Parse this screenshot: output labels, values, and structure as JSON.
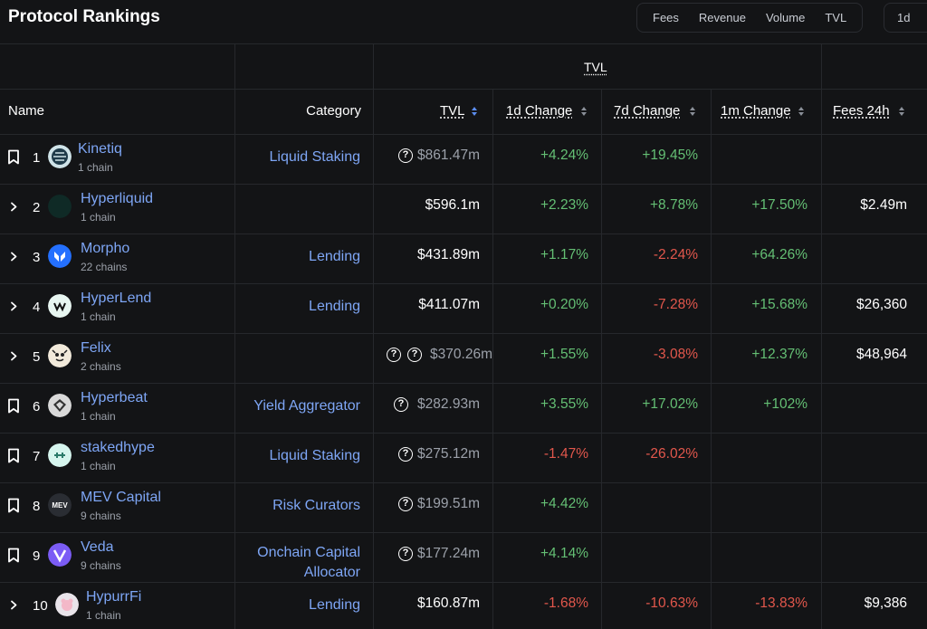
{
  "header": {
    "title": "Protocol Rankings",
    "filters": [
      "Fees",
      "Revenue",
      "Volume",
      "TVL"
    ],
    "period": "1d"
  },
  "table": {
    "group_label": "TVL",
    "columns": {
      "name": "Name",
      "category": "Category",
      "tvl": "TVL",
      "change_1d": "1d Change",
      "change_7d": "7d Change",
      "change_1m": "1m Change",
      "fees_24h": "Fees 24h"
    },
    "rows": [
      {
        "rank": "1",
        "name": "Kinetiq",
        "chains": "1 chain",
        "category": "Liquid Staking",
        "tvl": "$861.47m",
        "tvl_muted": true,
        "q": 1,
        "c1d": "+4.24%",
        "c7d": "+19.45%",
        "c1m": "",
        "fees": "",
        "row_icon": "bookmark-icon",
        "logo": "kinetiq-logo"
      },
      {
        "rank": "2",
        "name": "Hyperliquid",
        "chains": "1 chain",
        "category": "",
        "tvl": "$596.1m",
        "tvl_muted": false,
        "q": 0,
        "c1d": "+2.23%",
        "c7d": "+8.78%",
        "c1m": "+17.50%",
        "fees": "$2.49m",
        "row_icon": "chevron-right-icon",
        "logo": "hyperliquid-logo"
      },
      {
        "rank": "3",
        "name": "Morpho",
        "chains": "22 chains",
        "category": "Lending",
        "tvl": "$431.89m",
        "tvl_muted": false,
        "q": 0,
        "c1d": "+1.17%",
        "c7d": "-2.24%",
        "c1m": "+64.26%",
        "fees": "",
        "row_icon": "chevron-right-icon",
        "logo": "morpho-logo"
      },
      {
        "rank": "4",
        "name": "HyperLend",
        "chains": "1 chain",
        "category": "Lending",
        "tvl": "$411.07m",
        "tvl_muted": false,
        "q": 0,
        "c1d": "+0.20%",
        "c7d": "-7.28%",
        "c1m": "+15.68%",
        "fees": "$26,360",
        "row_icon": "chevron-right-icon",
        "logo": "hyperlend-logo"
      },
      {
        "rank": "5",
        "name": "Felix",
        "chains": "2 chains",
        "category": "",
        "tvl": "$370.26m",
        "tvl_muted": true,
        "q": 2,
        "c1d": "+1.55%",
        "c7d": "-3.08%",
        "c1m": "+12.37%",
        "fees": "$48,964",
        "row_icon": "chevron-right-icon",
        "logo": "felix-logo"
      },
      {
        "rank": "6",
        "name": "Hyperbeat",
        "chains": "1 chain",
        "category": "Yield Aggregator",
        "tvl": "$282.93m",
        "tvl_muted": true,
        "q": 1,
        "c1d": "+3.55%",
        "c7d": "+17.02%",
        "c1m": "+102%",
        "fees": "",
        "row_icon": "bookmark-icon",
        "logo": "hyperbeat-logo"
      },
      {
        "rank": "7",
        "name": "stakedhype",
        "chains": "1 chain",
        "category": "Liquid Staking",
        "tvl": "$275.12m",
        "tvl_muted": true,
        "q": 1,
        "c1d": "-1.47%",
        "c7d": "-26.02%",
        "c1m": "",
        "fees": "",
        "row_icon": "bookmark-icon",
        "logo": "stakedhype-logo"
      },
      {
        "rank": "8",
        "name": "MEV Capital",
        "chains": "9 chains",
        "category": "Risk Curators",
        "tvl": "$199.51m",
        "tvl_muted": true,
        "q": 1,
        "c1d": "+4.42%",
        "c7d": "",
        "c1m": "",
        "fees": "",
        "row_icon": "bookmark-icon",
        "logo": "mev-capital-logo",
        "logo_text": "MEV"
      },
      {
        "rank": "9",
        "name": "Veda",
        "chains": "9 chains",
        "category": "Onchain Capital Allocator",
        "tvl": "$177.24m",
        "tvl_muted": true,
        "q": 1,
        "c1d": "+4.14%",
        "c7d": "",
        "c1m": "",
        "fees": "",
        "row_icon": "bookmark-icon",
        "logo": "veda-logo"
      },
      {
        "rank": "10",
        "name": "HypurrFi",
        "chains": "1 chain",
        "category": "Lending",
        "tvl": "$160.87m",
        "tvl_muted": false,
        "q": 0,
        "c1d": "-1.68%",
        "c7d": "-10.63%",
        "c1m": "-13.83%",
        "fees": "$9,386",
        "row_icon": "chevron-right-icon",
        "logo": "hypurrfi-logo"
      }
    ]
  }
}
